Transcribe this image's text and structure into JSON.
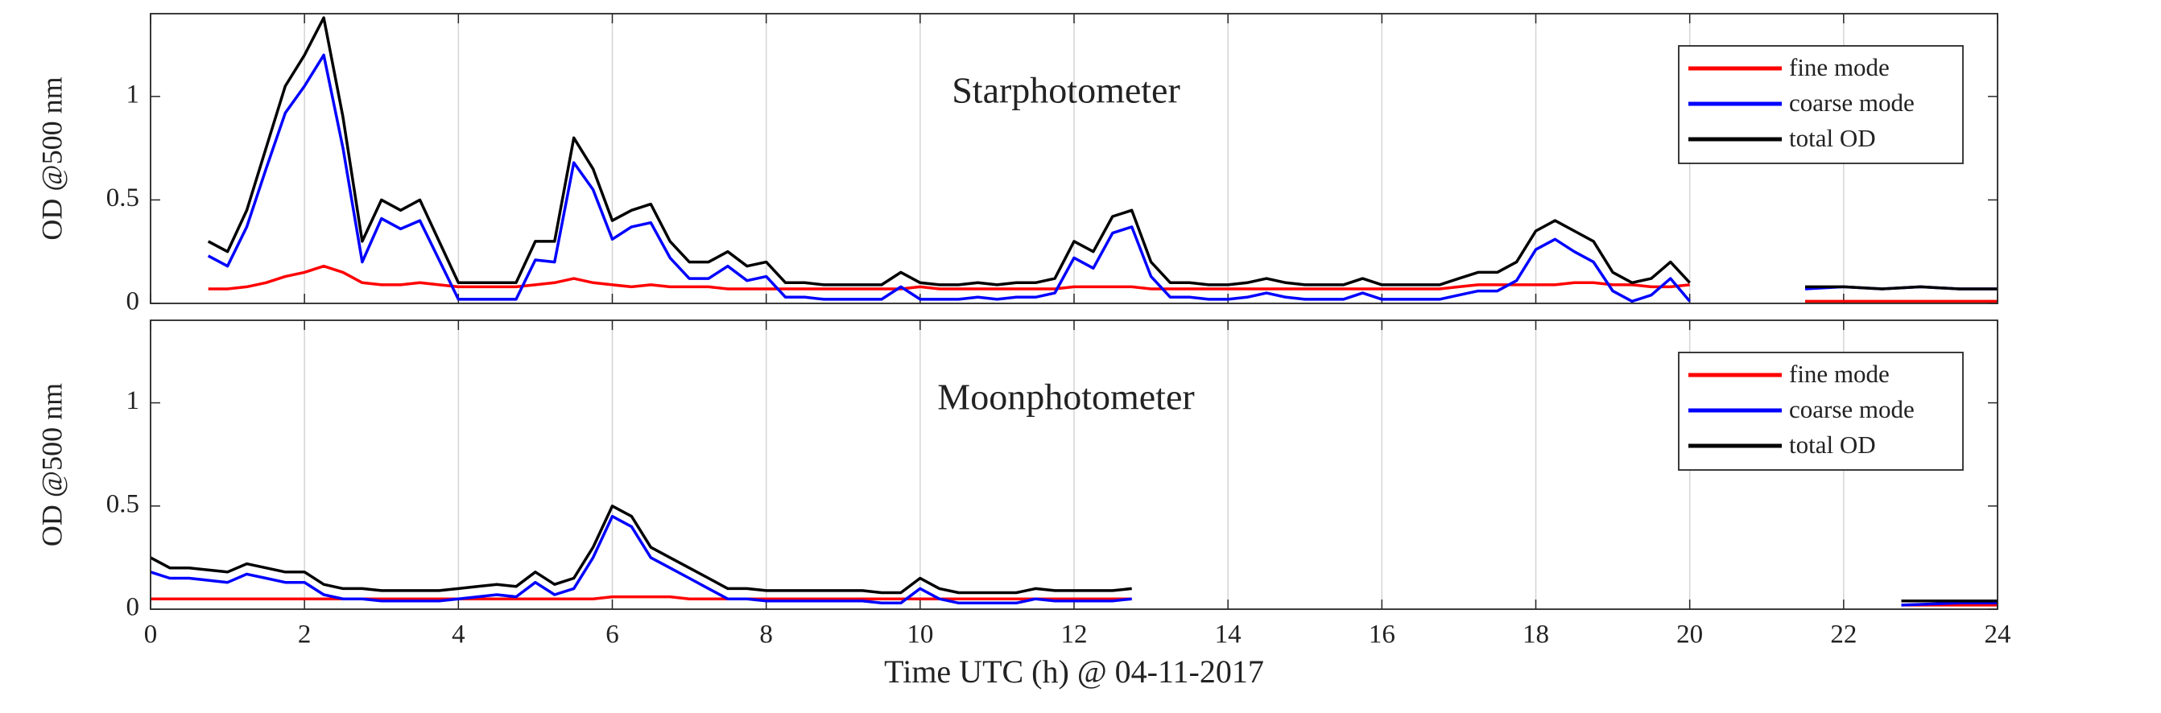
{
  "chart_data": [
    {
      "type": "line",
      "title": "Starphotometer",
      "ylabel": "OD @500 nm",
      "x": [
        0.75,
        1,
        1.25,
        1.5,
        1.75,
        2,
        2.25,
        2.5,
        2.75,
        3,
        3.25,
        3.5,
        3.75,
        4,
        4.25,
        4.5,
        4.75,
        5,
        5.25,
        5.5,
        5.75,
        6,
        6.25,
        6.5,
        6.75,
        7,
        7.25,
        7.5,
        7.75,
        8,
        8.25,
        8.5,
        8.75,
        9,
        9.25,
        9.5,
        9.75,
        10,
        10.25,
        10.5,
        10.75,
        11,
        11.25,
        11.5,
        11.75,
        12,
        12.25,
        12.5,
        12.75,
        13,
        13.25,
        13.5,
        13.75,
        14,
        14.25,
        14.5,
        14.75,
        15,
        15.25,
        15.5,
        15.75,
        16,
        16.25,
        16.5,
        16.75,
        17,
        17.25,
        17.5,
        17.75,
        18,
        18.25,
        18.5,
        18.75,
        19,
        19.25,
        19.5,
        19.75,
        20,
        null,
        21.5,
        22,
        22.5,
        23,
        23.5,
        24
      ],
      "series": [
        {
          "name": "fine mode",
          "color": "#ff0000",
          "values": [
            0.07,
            0.07,
            0.08,
            0.1,
            0.13,
            0.15,
            0.18,
            0.15,
            0.1,
            0.09,
            0.09,
            0.1,
            0.09,
            0.08,
            0.08,
            0.08,
            0.08,
            0.09,
            0.1,
            0.12,
            0.1,
            0.09,
            0.08,
            0.09,
            0.08,
            0.08,
            0.08,
            0.07,
            0.07,
            0.07,
            0.07,
            0.07,
            0.07,
            0.07,
            0.07,
            0.07,
            0.07,
            0.08,
            0.07,
            0.07,
            0.07,
            0.07,
            0.07,
            0.07,
            0.07,
            0.08,
            0.08,
            0.08,
            0.08,
            0.07,
            0.07,
            0.07,
            0.07,
            0.07,
            0.07,
            0.07,
            0.07,
            0.07,
            0.07,
            0.07,
            0.07,
            0.07,
            0.07,
            0.07,
            0.07,
            0.08,
            0.09,
            0.09,
            0.09,
            0.09,
            0.09,
            0.1,
            0.1,
            0.09,
            0.09,
            0.08,
            0.08,
            0.09,
            null,
            0.01,
            0.01,
            0.01,
            0.01,
            0.01,
            0.01
          ]
        },
        {
          "name": "coarse mode",
          "color": "#0000ff",
          "values": [
            0.23,
            0.18,
            0.37,
            0.65,
            0.92,
            1.05,
            1.2,
            0.75,
            0.2,
            0.41,
            0.36,
            0.4,
            0.21,
            0.02,
            0.02,
            0.02,
            0.02,
            0.21,
            0.2,
            0.68,
            0.55,
            0.31,
            0.37,
            0.39,
            0.22,
            0.12,
            0.12,
            0.18,
            0.11,
            0.13,
            0.03,
            0.03,
            0.02,
            0.02,
            0.02,
            0.02,
            0.08,
            0.02,
            0.02,
            0.02,
            0.03,
            0.02,
            0.03,
            0.03,
            0.05,
            0.22,
            0.17,
            0.34,
            0.37,
            0.13,
            0.03,
            0.03,
            0.02,
            0.02,
            0.03,
            0.05,
            0.03,
            0.02,
            0.02,
            0.02,
            0.05,
            0.02,
            0.02,
            0.02,
            0.02,
            0.04,
            0.06,
            0.06,
            0.11,
            0.26,
            0.31,
            0.25,
            0.2,
            0.06,
            0.01,
            0.04,
            0.12,
            0.01,
            null,
            0.07,
            0.08,
            0.07,
            0.08,
            0.07,
            0.07
          ]
        },
        {
          "name": "total OD",
          "color": "#000000",
          "values": [
            0.3,
            0.25,
            0.45,
            0.75,
            1.05,
            1.2,
            1.38,
            0.9,
            0.3,
            0.5,
            0.45,
            0.5,
            0.3,
            0.1,
            0.1,
            0.1,
            0.1,
            0.3,
            0.3,
            0.8,
            0.65,
            0.4,
            0.45,
            0.48,
            0.3,
            0.2,
            0.2,
            0.25,
            0.18,
            0.2,
            0.1,
            0.1,
            0.09,
            0.09,
            0.09,
            0.09,
            0.15,
            0.1,
            0.09,
            0.09,
            0.1,
            0.09,
            0.1,
            0.1,
            0.12,
            0.3,
            0.25,
            0.42,
            0.45,
            0.2,
            0.1,
            0.1,
            0.09,
            0.09,
            0.1,
            0.12,
            0.1,
            0.09,
            0.09,
            0.09,
            0.12,
            0.09,
            0.09,
            0.09,
            0.09,
            0.12,
            0.15,
            0.15,
            0.2,
            0.35,
            0.4,
            0.35,
            0.3,
            0.15,
            0.1,
            0.12,
            0.2,
            0.1,
            null,
            0.08,
            0.08,
            0.07,
            0.08,
            0.07,
            0.07
          ]
        }
      ],
      "xlim": [
        0,
        24
      ],
      "ylim": [
        0,
        1.4
      ],
      "xticks": [
        0,
        2,
        4,
        6,
        8,
        10,
        12,
        14,
        16,
        18,
        20,
        22,
        24
      ],
      "yticks": [
        0,
        0.5,
        1
      ],
      "grid": "x",
      "legend": "upper right"
    },
    {
      "type": "line",
      "title": "Moonphotometer",
      "ylabel": "OD @500 nm",
      "xlabel": "Time UTC (h) @ 04-11-2017",
      "x": [
        0,
        0.25,
        0.5,
        0.75,
        1,
        1.25,
        1.5,
        1.75,
        2,
        2.25,
        2.5,
        2.75,
        3,
        3.25,
        3.5,
        3.75,
        4,
        4.25,
        4.5,
        4.75,
        5,
        5.25,
        5.5,
        5.75,
        6,
        6.25,
        6.5,
        6.75,
        7,
        7.25,
        7.5,
        7.75,
        8,
        8.25,
        8.5,
        8.75,
        9,
        9.25,
        9.5,
        9.75,
        10,
        10.25,
        10.5,
        10.75,
        11,
        11.25,
        11.5,
        11.75,
        12,
        12.25,
        12.5,
        12.75,
        null,
        22.75,
        23.5,
        24
      ],
      "series": [
        {
          "name": "fine mode",
          "color": "#ff0000",
          "values": [
            0.05,
            0.05,
            0.05,
            0.05,
            0.05,
            0.05,
            0.05,
            0.05,
            0.05,
            0.05,
            0.05,
            0.05,
            0.05,
            0.05,
            0.05,
            0.05,
            0.05,
            0.05,
            0.05,
            0.05,
            0.05,
            0.05,
            0.05,
            0.05,
            0.06,
            0.06,
            0.06,
            0.06,
            0.05,
            0.05,
            0.05,
            0.05,
            0.05,
            0.05,
            0.05,
            0.05,
            0.05,
            0.05,
            0.05,
            0.05,
            0.05,
            0.05,
            0.05,
            0.05,
            0.05,
            0.05,
            0.05,
            0.05,
            0.05,
            0.05,
            0.05,
            0.05,
            null,
            0.02,
            0.02,
            0.02
          ]
        },
        {
          "name": "coarse mode",
          "color": "#0000ff",
          "values": [
            0.18,
            0.15,
            0.15,
            0.14,
            0.13,
            0.17,
            0.15,
            0.13,
            0.13,
            0.07,
            0.05,
            0.05,
            0.04,
            0.04,
            0.04,
            0.04,
            0.05,
            0.06,
            0.07,
            0.06,
            0.13,
            0.07,
            0.1,
            0.25,
            0.45,
            0.4,
            0.25,
            0.2,
            0.15,
            0.1,
            0.05,
            0.05,
            0.04,
            0.04,
            0.04,
            0.04,
            0.04,
            0.04,
            0.03,
            0.03,
            0.1,
            0.05,
            0.03,
            0.03,
            0.03,
            0.03,
            0.05,
            0.04,
            0.04,
            0.04,
            0.04,
            0.05,
            null,
            0.02,
            0.03,
            0.03
          ]
        },
        {
          "name": "total OD",
          "color": "#000000",
          "values": [
            0.25,
            0.2,
            0.2,
            0.19,
            0.18,
            0.22,
            0.2,
            0.18,
            0.18,
            0.12,
            0.1,
            0.1,
            0.09,
            0.09,
            0.09,
            0.09,
            0.1,
            0.11,
            0.12,
            0.11,
            0.18,
            0.12,
            0.15,
            0.3,
            0.5,
            0.45,
            0.3,
            0.25,
            0.2,
            0.15,
            0.1,
            0.1,
            0.09,
            0.09,
            0.09,
            0.09,
            0.09,
            0.09,
            0.08,
            0.08,
            0.15,
            0.1,
            0.08,
            0.08,
            0.08,
            0.08,
            0.1,
            0.09,
            0.09,
            0.09,
            0.09,
            0.1,
            null,
            0.04,
            0.04,
            0.04
          ]
        }
      ],
      "xlim": [
        0,
        24
      ],
      "ylim": [
        0,
        1.4
      ],
      "xticks": [
        0,
        2,
        4,
        6,
        8,
        10,
        12,
        14,
        16,
        18,
        20,
        22,
        24
      ],
      "yticks": [
        0,
        0.5,
        1
      ],
      "grid": "x",
      "legend": "upper right"
    }
  ]
}
